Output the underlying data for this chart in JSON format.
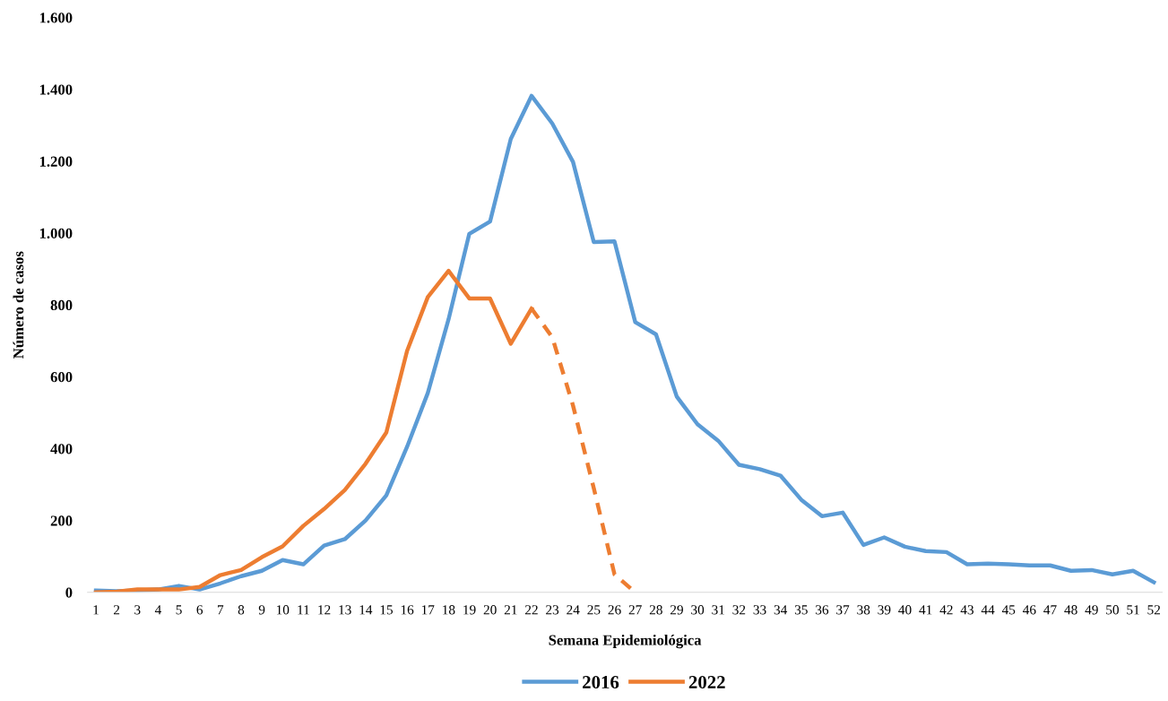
{
  "chart_data": {
    "type": "line",
    "xlabel": "Semana Epidemiológica",
    "ylabel": "Número de casos",
    "categories": [
      "1",
      "2",
      "3",
      "4",
      "5",
      "6",
      "7",
      "8",
      "9",
      "10",
      "11",
      "12",
      "13",
      "14",
      "15",
      "16",
      "17",
      "18",
      "19",
      "20",
      "21",
      "22",
      "23",
      "24",
      "25",
      "26",
      "27",
      "28",
      "29",
      "30",
      "31",
      "32",
      "33",
      "34",
      "35",
      "36",
      "37",
      "38",
      "39",
      "40",
      "41",
      "42",
      "43",
      "44",
      "45",
      "46",
      "47",
      "48",
      "49",
      "50",
      "51",
      "52"
    ],
    "series": [
      {
        "name": "2016",
        "color": "#5b9bd5",
        "line_style": "solid",
        "values": [
          5,
          3,
          5,
          8,
          18,
          8,
          25,
          45,
          60,
          90,
          78,
          130,
          148,
          200,
          270,
          405,
          555,
          760,
          998,
          1032,
          1262,
          1382,
          1305,
          1198,
          975,
          977,
          752,
          718,
          545,
          468,
          422,
          355,
          343,
          325,
          258,
          212,
          222,
          132,
          153,
          127,
          115,
          112,
          78,
          80,
          78,
          75,
          75,
          60,
          62,
          50,
          60,
          28
        ]
      },
      {
        "name": "2022",
        "color": "#ed7d31",
        "line_style": "solid",
        "values": [
          0,
          2,
          8,
          8,
          8,
          15,
          48,
          62,
          98,
          128,
          185,
          232,
          285,
          358,
          445,
          672,
          822,
          895,
          818,
          818,
          692,
          790,
          null,
          null,
          null,
          null,
          null,
          null,
          null,
          null,
          null,
          null,
          null,
          null,
          null,
          null,
          null,
          null,
          null,
          null,
          null,
          null,
          null,
          null,
          null,
          null,
          null,
          null,
          null,
          null,
          null,
          null
        ]
      },
      {
        "color": "#ed7d31",
        "line_style": "dashed",
        "values": [
          null,
          null,
          null,
          null,
          null,
          null,
          null,
          null,
          null,
          null,
          null,
          null,
          null,
          null,
          null,
          null,
          null,
          null,
          null,
          null,
          null,
          790,
          710,
          520,
          290,
          50,
          0,
          null,
          null,
          null,
          null,
          null,
          null,
          null,
          null,
          null,
          null,
          null,
          null,
          null,
          null,
          null,
          null,
          null,
          null,
          null,
          null,
          null,
          null,
          null,
          null,
          null
        ]
      }
    ],
    "ylim": [
      0,
      1600
    ],
    "yticks": [
      {
        "value": 0,
        "label": "0"
      },
      {
        "value": 200,
        "label": "200"
      },
      {
        "value": 400,
        "label": "400"
      },
      {
        "value": 600,
        "label": "600"
      },
      {
        "value": 800,
        "label": "800"
      },
      {
        "value": 1000,
        "label": "1.000"
      },
      {
        "value": 1200,
        "label": "1.200"
      },
      {
        "value": 1400,
        "label": "1.400"
      },
      {
        "value": 1600,
        "label": "1.600"
      }
    ],
    "grid": false,
    "legend": "bottom",
    "marker": "none"
  }
}
